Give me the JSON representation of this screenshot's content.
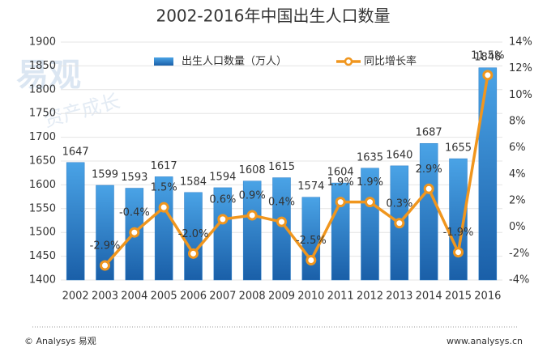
{
  "chart_data": {
    "type": "bar_line",
    "title": "2002-2016年中国出生人口数量",
    "categories": [
      "2002",
      "2003",
      "2004",
      "2005",
      "2006",
      "2007",
      "2008",
      "2009",
      "2010",
      "2011",
      "2012",
      "2013",
      "2014",
      "2015",
      "2016"
    ],
    "series": [
      {
        "name": "出生人口数量（万人）",
        "type": "bar",
        "color": "#2a7cc7",
        "values": [
          1647,
          1599,
          1593,
          1617,
          1584,
          1594,
          1608,
          1615,
          1574,
          1604,
          1635,
          1640,
          1687,
          1655,
          1846
        ]
      },
      {
        "name": "同比增长率",
        "type": "line",
        "axis": "y2",
        "color": "#f0961e",
        "values": [
          null,
          -2.9,
          -0.4,
          1.5,
          -2.0,
          0.6,
          0.9,
          0.4,
          -2.5,
          1.9,
          1.9,
          0.3,
          2.9,
          -1.9,
          11.5
        ],
        "value_labels": [
          null,
          "-2.9%",
          "-0.4%",
          "1.5%",
          "-2.0%",
          "0.6%",
          "0.9%",
          "0.4%",
          "-2.5%",
          "1.9%",
          "1.9%",
          "0.3%",
          "2.9%",
          "-1.9%",
          "11.5%"
        ]
      }
    ],
    "ylim": [
      1400,
      1900
    ],
    "yticks": [
      1400,
      1450,
      1500,
      1550,
      1600,
      1650,
      1700,
      1750,
      1800,
      1850,
      1900
    ],
    "y2lim": [
      -4,
      14
    ],
    "y2ticks": [
      {
        "value": -4,
        "label": "-4%"
      },
      {
        "value": -2,
        "label": "-2%"
      },
      {
        "value": 0,
        "label": "0%"
      },
      {
        "value": 2,
        "label": "2%"
      },
      {
        "value": 4,
        "label": "4%"
      },
      {
        "value": 6,
        "label": "6%"
      },
      {
        "value": 8,
        "label": "8%"
      },
      {
        "value": 10,
        "label": "10%"
      },
      {
        "value": 12,
        "label": "12%"
      },
      {
        "value": 14,
        "label": "14%"
      }
    ],
    "grid": true,
    "legend": "top",
    "watermark": [
      "易观",
      "资产成长"
    ],
    "footer_left": "© Analysys 易观",
    "footer_right": "www.analysys.cn"
  }
}
